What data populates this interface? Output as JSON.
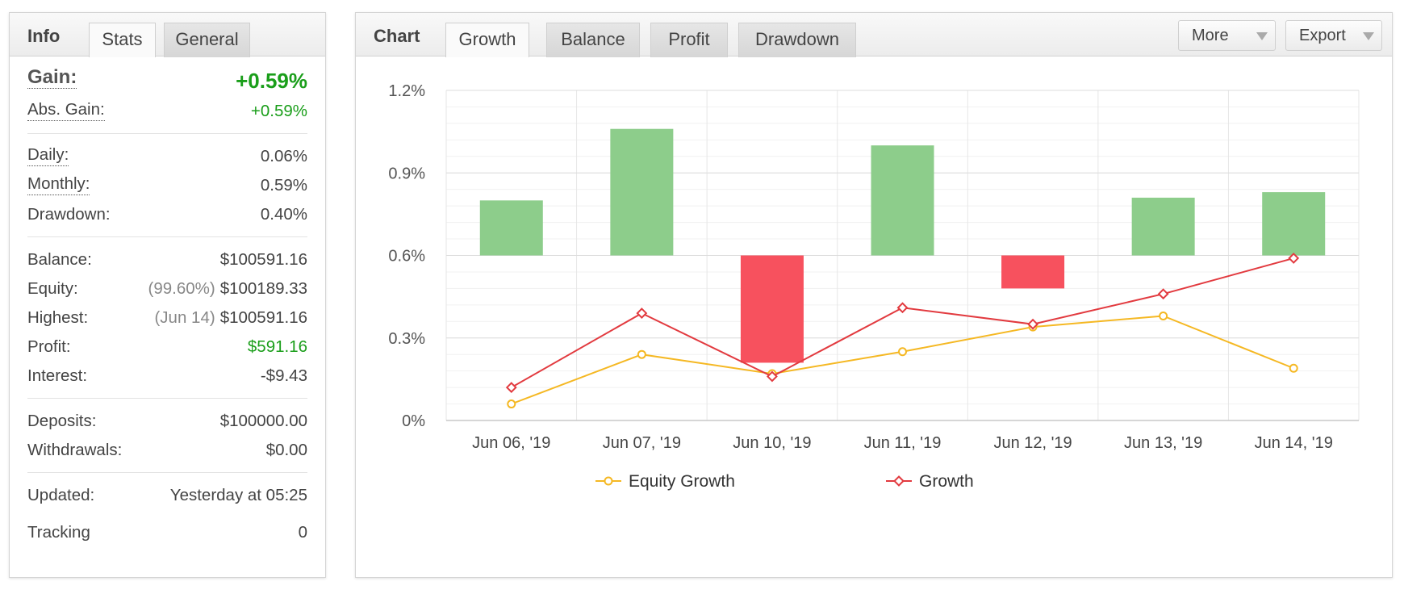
{
  "info_panel": {
    "title": "Info",
    "tabs": [
      {
        "label": "Stats",
        "active": true
      },
      {
        "label": "General",
        "active": false
      }
    ],
    "gain": {
      "label": "Gain:",
      "value": "+0.59%"
    },
    "abs_gain": {
      "label": "Abs. Gain:",
      "value": "+0.59%"
    },
    "daily": {
      "label": "Daily:",
      "value": "0.06%"
    },
    "monthly": {
      "label": "Monthly:",
      "value": "0.59%"
    },
    "drawdown": {
      "label": "Drawdown:",
      "value": "0.40%"
    },
    "balance": {
      "label": "Balance:",
      "value": "$100591.16"
    },
    "equity": {
      "label": "Equity:",
      "sub": "(99.60%)",
      "value": "$100189.33"
    },
    "highest": {
      "label": "Highest:",
      "sub": "(Jun 14)",
      "value": "$100591.16"
    },
    "profit": {
      "label": "Profit:",
      "value": "$591.16"
    },
    "interest": {
      "label": "Interest:",
      "value": "-$9.43"
    },
    "deposits": {
      "label": "Deposits:",
      "value": "$100000.00"
    },
    "withdrawals": {
      "label": "Withdrawals:",
      "value": "$0.00"
    },
    "updated": {
      "label": "Updated:",
      "value": "Yesterday at 05:25"
    },
    "tracking": {
      "label": "Tracking",
      "value": "0"
    }
  },
  "chart_panel": {
    "title": "Chart",
    "tabs": [
      {
        "label": "Growth",
        "active": true
      },
      {
        "label": "Balance",
        "active": false
      },
      {
        "label": "Profit",
        "active": false
      },
      {
        "label": "Drawdown",
        "active": false
      }
    ],
    "more_label": "More",
    "export_label": "Export"
  },
  "colors": {
    "positive_bar": "#8dcd8b",
    "negative_bar": "#f7515e",
    "equity_line": "#f5b823",
    "growth_line": "#e23a3f",
    "green_text": "#1a9e1a"
  },
  "chart_data": {
    "type": "bar",
    "categories": [
      "Jun 06, '19",
      "Jun 07, '19",
      "Jun 10, '19",
      "Jun 11, '19",
      "Jun 12, '19",
      "Jun 13, '19",
      "Jun 14, '19"
    ],
    "yticks": [
      "0%",
      "0.3%",
      "0.6%",
      "0.9%",
      "1.2%"
    ],
    "ylim": [
      0,
      1.2
    ],
    "bar_baseline": 0.6,
    "bars": [
      0.8,
      1.06,
      0.21,
      1.0,
      0.48,
      0.81,
      0.83
    ],
    "series": [
      {
        "name": "Equity Growth",
        "type": "line",
        "values": [
          0.06,
          0.24,
          0.17,
          0.25,
          0.34,
          0.38,
          0.19
        ]
      },
      {
        "name": "Growth",
        "type": "line",
        "values": [
          0.12,
          0.39,
          0.16,
          0.41,
          0.35,
          0.46,
          0.59
        ]
      }
    ],
    "legend_position": "bottom"
  }
}
